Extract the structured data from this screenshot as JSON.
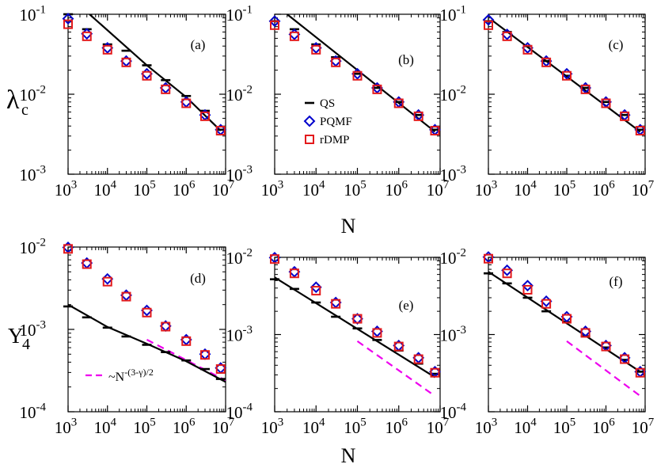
{
  "figure": {
    "x_axis_label": "N",
    "row_labels": {
      "top": {
        "main": "λ",
        "sub": "c"
      },
      "bottom": {
        "main": "Y",
        "sub": "4"
      }
    }
  },
  "chart_data": [
    {
      "panel": "(a)",
      "type": "scatter",
      "xscale": "log",
      "yscale": "log",
      "xlim": [
        1000,
        10000000
      ],
      "ylim": [
        0.001,
        0.1
      ],
      "x": [
        1000,
        3000,
        10000,
        30000,
        100000,
        300000,
        1000000,
        3000000,
        7500000
      ],
      "series": [
        {
          "name": "QS",
          "marker": "dash",
          "color": "#000000",
          "values": [
            0.1,
            0.065,
            0.042,
            0.035,
            0.023,
            0.015,
            0.0095,
            0.0062,
            0.0036
          ]
        },
        {
          "name": "PQMF",
          "marker": "diamond",
          "color": "#0000cc",
          "values": [
            0.088,
            0.057,
            0.038,
            0.026,
            0.018,
            0.012,
            0.008,
            0.0055,
            0.0036
          ]
        },
        {
          "name": "rDMP",
          "marker": "square",
          "color": "#e31a1c",
          "values": [
            0.075,
            0.053,
            0.036,
            0.025,
            0.017,
            0.0115,
            0.0077,
            0.0053,
            0.0035
          ]
        }
      ],
      "fit_line": [
        [
          3500,
          0.1
        ],
        [
          100000,
          0.023
        ],
        [
          1000000,
          0.0092
        ],
        [
          7500000,
          0.0035
        ]
      ]
    },
    {
      "panel": "(b)",
      "type": "scatter",
      "xscale": "log",
      "yscale": "log",
      "xlim": [
        1000,
        10000000
      ],
      "ylim": [
        0.001,
        0.1
      ],
      "x": [
        1000,
        3000,
        10000,
        30000,
        100000,
        300000,
        1000000,
        3000000,
        7500000
      ],
      "series": [
        {
          "name": "QS",
          "marker": "dash",
          "color": "#000000",
          "values": [
            0.082,
            0.065,
            0.042,
            0.029,
            0.018,
            0.012,
            0.008,
            0.0055,
            0.0036
          ]
        },
        {
          "name": "PQMF",
          "marker": "diamond",
          "color": "#0000cc",
          "values": [
            0.082,
            0.056,
            0.038,
            0.026,
            0.018,
            0.012,
            0.008,
            0.0055,
            0.0036
          ]
        },
        {
          "name": "rDMP",
          "marker": "square",
          "color": "#e31a1c",
          "values": [
            0.073,
            0.053,
            0.036,
            0.025,
            0.017,
            0.0115,
            0.0077,
            0.0053,
            0.0035
          ]
        }
      ],
      "fit_line": [
        [
          2000,
          0.1
        ],
        [
          7500000,
          0.0034
        ]
      ],
      "legend": [
        {
          "label": "QS",
          "marker": "dash"
        },
        {
          "label": "PQMF",
          "marker": "diamond"
        },
        {
          "label": "rDMP",
          "marker": "square"
        }
      ]
    },
    {
      "panel": "(c)",
      "type": "scatter",
      "xscale": "log",
      "yscale": "log",
      "xlim": [
        1000,
        10000000
      ],
      "ylim": [
        0.001,
        0.1
      ],
      "x": [
        1000,
        3000,
        10000,
        30000,
        100000,
        300000,
        1000000,
        3000000,
        7500000
      ],
      "series": [
        {
          "name": "QS",
          "marker": "dash",
          "color": "#000000",
          "values": [
            0.082,
            0.06,
            0.04,
            0.026,
            0.017,
            0.012,
            0.008,
            0.0055,
            0.0036
          ]
        },
        {
          "name": "PQMF",
          "marker": "diamond",
          "color": "#0000cc",
          "values": [
            0.085,
            0.056,
            0.038,
            0.026,
            0.018,
            0.012,
            0.008,
            0.0055,
            0.0036
          ]
        },
        {
          "name": "rDMP",
          "marker": "square",
          "color": "#e31a1c",
          "values": [
            0.073,
            0.053,
            0.036,
            0.025,
            0.017,
            0.0115,
            0.0077,
            0.0053,
            0.0035
          ]
        }
      ],
      "fit_line": [
        [
          1200,
          0.085
        ],
        [
          7500000,
          0.0034
        ]
      ]
    },
    {
      "panel": "(d)",
      "type": "scatter",
      "xscale": "log",
      "yscale": "log",
      "xlim": [
        1000,
        10000000
      ],
      "ylim": [
        0.0001,
        0.01
      ],
      "x": [
        1000,
        3000,
        10000,
        30000,
        100000,
        300000,
        1000000,
        3000000,
        7500000
      ],
      "series": [
        {
          "name": "QS",
          "marker": "dash",
          "color": "#000000",
          "values": [
            0.0019,
            0.0014,
            0.00105,
            0.00082,
            0.00065,
            0.00053,
            0.00042,
            0.00033,
            0.00025
          ]
        },
        {
          "name": "PQMF",
          "marker": "diamond",
          "color": "#0000cc",
          "values": [
            0.0099,
            0.0064,
            0.0041,
            0.0026,
            0.0017,
            0.0011,
            0.00075,
            0.0005,
            0.00034
          ]
        },
        {
          "name": "rDMP",
          "marker": "square",
          "color": "#e31a1c",
          "values": [
            0.0095,
            0.0062,
            0.0038,
            0.0025,
            0.0016,
            0.00108,
            0.00072,
            0.00049,
            0.00033
          ]
        }
      ],
      "fit_line": [
        [
          1000,
          0.002
        ],
        [
          10000,
          0.00107
        ],
        [
          100000,
          0.00067
        ],
        [
          1000000,
          0.00041
        ],
        [
          10000000,
          0.00023
        ]
      ],
      "guide_line": {
        "label": "~N",
        "exponent": "-(3-γ)/2",
        "style": "dashed",
        "color": "#ee00ee",
        "points": [
          [
            100000,
            0.00075
          ],
          [
            10000000,
            0.00024
          ]
        ]
      }
    },
    {
      "panel": "(e)",
      "type": "scatter",
      "xscale": "log",
      "yscale": "log",
      "xlim": [
        1000,
        10000000
      ],
      "ylim": [
        0.0001,
        0.01
      ],
      "x": [
        1000,
        3000,
        10000,
        30000,
        100000,
        300000,
        1000000,
        3000000,
        7500000
      ],
      "series": [
        {
          "name": "QS",
          "marker": "dash",
          "color": "#000000",
          "values": [
            0.0052,
            0.0039,
            0.0026,
            0.0017,
            0.0012,
            0.00085,
            0.00062,
            0.00042,
            0.00031
          ]
        },
        {
          "name": "PQMF",
          "marker": "diamond",
          "color": "#0000cc",
          "values": [
            0.0099,
            0.0065,
            0.0041,
            0.0026,
            0.0016,
            0.0011,
            0.00072,
            0.0005,
            0.00033
          ]
        },
        {
          "name": "rDMP",
          "marker": "square",
          "color": "#e31a1c",
          "values": [
            0.0095,
            0.0062,
            0.0037,
            0.0025,
            0.0016,
            0.00105,
            0.0007,
            0.00048,
            0.00032
          ]
        }
      ],
      "fit_line": [
        [
          1000,
          0.0055
        ],
        [
          7500000,
          0.00028
        ]
      ],
      "guide_line": {
        "style": "dashed",
        "color": "#ee00ee",
        "points": [
          [
            100000,
            0.00082
          ],
          [
            7500000,
            0.00016
          ]
        ]
      }
    },
    {
      "panel": "(f)",
      "type": "scatter",
      "xscale": "log",
      "yscale": "log",
      "xlim": [
        1000,
        10000000
      ],
      "ylim": [
        0.0001,
        0.01
      ],
      "x": [
        1000,
        3000,
        10000,
        30000,
        100000,
        300000,
        1000000,
        3000000,
        7500000
      ],
      "series": [
        {
          "name": "QS",
          "marker": "dash",
          "color": "#000000",
          "values": [
            0.0062,
            0.0046,
            0.003,
            0.002,
            0.00145,
            0.00095,
            0.00068,
            0.00047,
            0.00033
          ]
        },
        {
          "name": "PQMF",
          "marker": "diamond",
          "color": "#0000cc",
          "values": [
            0.0101,
            0.0068,
            0.0043,
            0.0027,
            0.0017,
            0.0011,
            0.00072,
            0.0005,
            0.00033
          ]
        },
        {
          "name": "rDMP",
          "marker": "square",
          "color": "#e31a1c",
          "values": [
            0.0096,
            0.0062,
            0.0038,
            0.0025,
            0.0016,
            0.00105,
            0.0007,
            0.00048,
            0.00032
          ]
        }
      ],
      "fit_line": [
        [
          1000,
          0.0065
        ],
        [
          7500000,
          0.00033
        ]
      ],
      "guide_line": {
        "style": "dashed",
        "color": "#ee00ee",
        "points": [
          [
            100000,
            0.00082
          ],
          [
            7500000,
            0.00016
          ]
        ]
      }
    }
  ]
}
